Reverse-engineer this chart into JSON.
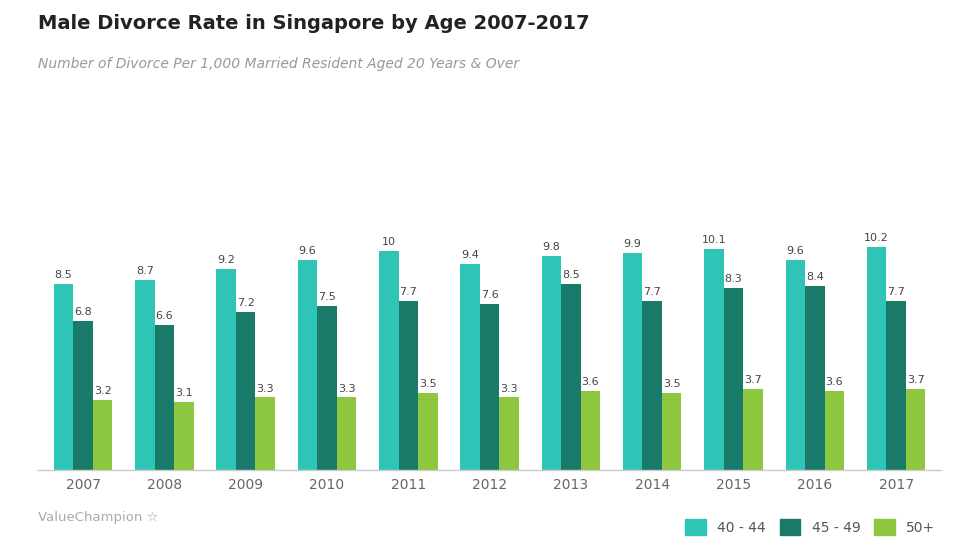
{
  "title": "Male Divorce Rate in Singapore by Age 2007-2017",
  "subtitle": "Number of Divorce Per 1,000 Married Resident Aged 20 Years & Over",
  "years": [
    2007,
    2008,
    2009,
    2010,
    2011,
    2012,
    2013,
    2014,
    2015,
    2016,
    2017
  ],
  "series": {
    "40 - 44": [
      8.5,
      8.7,
      9.2,
      9.6,
      10.0,
      9.4,
      9.8,
      9.9,
      10.1,
      9.6,
      10.2
    ],
    "45 - 49": [
      6.8,
      6.6,
      7.2,
      7.5,
      7.7,
      7.6,
      8.5,
      7.7,
      8.3,
      8.4,
      7.7
    ],
    "50+": [
      3.2,
      3.1,
      3.3,
      3.3,
      3.5,
      3.3,
      3.6,
      3.5,
      3.7,
      3.6,
      3.7
    ]
  },
  "colors": {
    "40 - 44": "#2ec4b6",
    "45 - 49": "#1a7a6a",
    "50+": "#8dc63f"
  },
  "bar_width": 0.24,
  "background_color": "#ffffff",
  "title_fontsize": 14,
  "subtitle_fontsize": 10,
  "label_fontsize": 8,
  "tick_fontsize": 10,
  "legend_fontsize": 10,
  "watermark": "ValueChampion",
  "ylim": [
    0,
    13
  ]
}
